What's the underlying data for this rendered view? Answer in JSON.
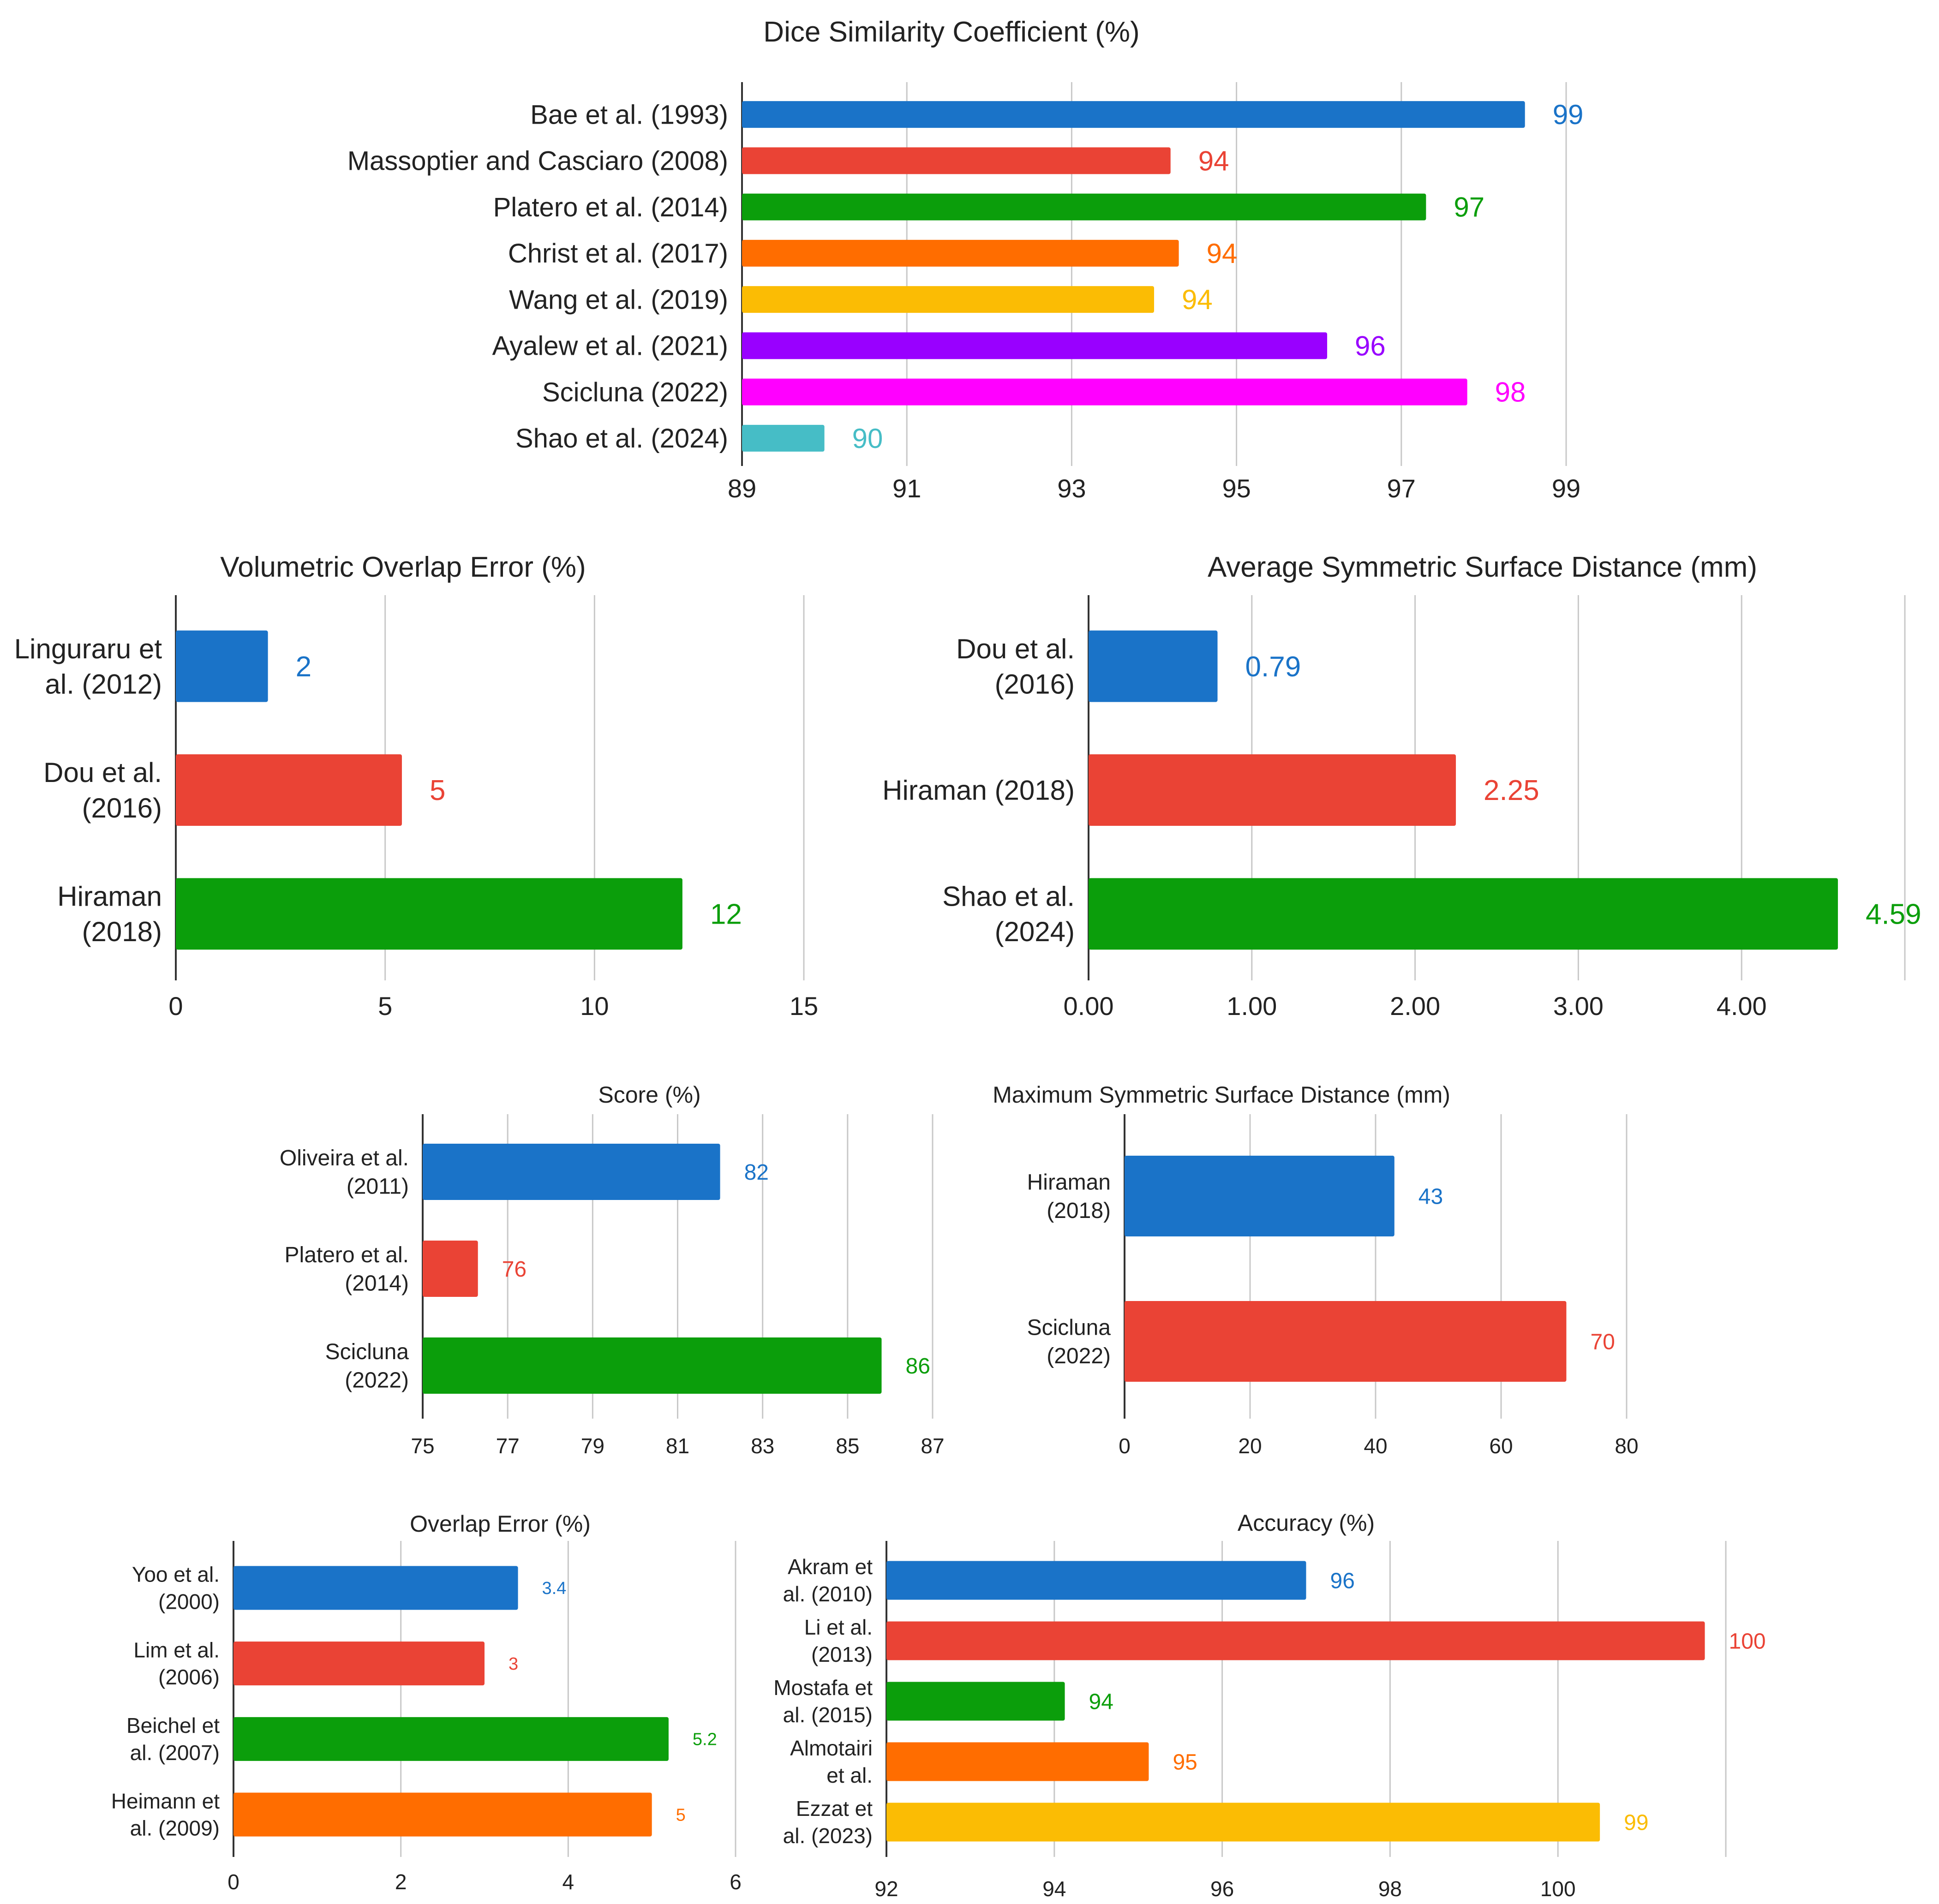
{
  "colors": {
    "palette": [
      "#1a73c8",
      "#ea4335",
      "#0b9e0b",
      "#ff6d00",
      "#fbbc04",
      "#9900ff",
      "#ff00ff",
      "#46bdc6"
    ],
    "text": "#222222",
    "grid": "#c8c8c8",
    "axis": "#333333"
  },
  "chart_data": [
    {
      "id": "dice",
      "type": "bar",
      "orientation": "horizontal",
      "title": "Dice Similarity Coefficient (%)",
      "categories": [
        "Bae et al. (1993)",
        "Massoptier and Casciaro (2008)",
        "Platero et al. (2014)",
        "Christ et al. (2017)",
        "Wang et al. (2019)",
        "Ayalew et al. (2021)",
        "Scicluna (2022)",
        "Shao et al. (2024)"
      ],
      "values": [
        98.5,
        94.2,
        97.3,
        94.3,
        94.0,
        96.1,
        97.8,
        90.0
      ],
      "data_labels": [
        "99",
        "94",
        "97",
        "94",
        "94",
        "96",
        "98",
        "90"
      ],
      "xlim": [
        89,
        99
      ],
      "ticks": [
        "89",
        "91",
        "93",
        "95",
        "97",
        "99"
      ],
      "grid": true
    },
    {
      "id": "voe",
      "type": "bar",
      "orientation": "horizontal",
      "title": "Volumetric Overlap Error (%)",
      "categories": [
        [
          "Linguraru et",
          "al. (2012)"
        ],
        [
          "Dou et al.",
          "(2016)"
        ],
        [
          "Hiraman",
          "(2018)"
        ]
      ],
      "values": [
        2.2,
        5.4,
        12.1
      ],
      "data_labels": [
        "2",
        "5",
        "12"
      ],
      "xlim": [
        0,
        15
      ],
      "ticks": [
        "0",
        "5",
        "10",
        "15"
      ],
      "grid": true
    },
    {
      "id": "assd",
      "type": "bar",
      "orientation": "horizontal",
      "title": "Average Symmetric Surface Distance (mm)",
      "categories": [
        [
          "Dou et al.",
          "(2016)"
        ],
        [
          "Hiraman (2018)"
        ],
        [
          "Shao et al.",
          "(2024)"
        ]
      ],
      "values": [
        0.79,
        2.25,
        4.59
      ],
      "data_labels": [
        "0.79",
        "2.25",
        "4.59"
      ],
      "xlim": [
        0,
        5
      ],
      "ticks": [
        "0.00",
        "1.00",
        "2.00",
        "3.00",
        "4.00",
        ""
      ],
      "grid": true
    },
    {
      "id": "score",
      "type": "bar",
      "orientation": "horizontal",
      "title": "Score (%)",
      "categories": [
        [
          "Oliveira et al.",
          "(2011)"
        ],
        [
          "Platero et al.",
          "(2014)"
        ],
        [
          "Scicluna",
          "(2022)"
        ]
      ],
      "values": [
        82,
        76.3,
        85.8
      ],
      "data_labels": [
        "82",
        "76",
        "86"
      ],
      "xlim": [
        75,
        87
      ],
      "ticks": [
        "75",
        "77",
        "79",
        "81",
        "83",
        "85",
        "87"
      ],
      "grid": true
    },
    {
      "id": "msd",
      "type": "bar",
      "orientation": "horizontal",
      "title": "Maximum Symmetric Surface Distance (mm)",
      "categories": [
        [
          "Hiraman",
          "(2018)"
        ],
        [
          "Scicluna",
          "(2022)"
        ]
      ],
      "values": [
        43,
        70.4
      ],
      "data_labels": [
        "43",
        "70"
      ],
      "xlim": [
        0,
        80
      ],
      "ticks": [
        "0",
        "20",
        "40",
        "60",
        "80"
      ],
      "grid": true
    },
    {
      "id": "oe",
      "type": "bar",
      "orientation": "horizontal",
      "title": "Overlap Error (%)",
      "categories": [
        [
          "Yoo et al.",
          "(2000)"
        ],
        [
          "Lim et al.",
          "(2006)"
        ],
        [
          "Beichel et",
          "al. (2007)"
        ],
        [
          "Heimann et",
          "al. (2009)"
        ]
      ],
      "values": [
        3.4,
        3.0,
        5.2,
        5.0
      ],
      "data_labels": [
        "3.4",
        "3",
        "5.2",
        "5"
      ],
      "xlim": [
        0,
        6
      ],
      "ticks": [
        "0",
        "2",
        "4",
        "6"
      ],
      "grid": true
    },
    {
      "id": "acc",
      "type": "bar",
      "orientation": "horizontal",
      "title": "Accuracy (%)",
      "categories": [
        [
          "Akram et",
          "al. (2010)"
        ],
        [
          "Li et al.",
          "(2013)"
        ],
        [
          "Mostafa et",
          "al. (2015)"
        ],
        [
          "Almotairi",
          "et al."
        ],
        [
          "Ezzat et",
          "al. (2023)"
        ]
      ],
      "values": [
        96,
        99.8,
        93.7,
        94.5,
        98.8
      ],
      "data_labels": [
        "96",
        "100",
        "94",
        "95",
        "99"
      ],
      "xlim": [
        92,
        100
      ],
      "ticks": [
        "92",
        "94",
        "96",
        "98",
        "100",
        ""
      ],
      "grid": true
    }
  ]
}
